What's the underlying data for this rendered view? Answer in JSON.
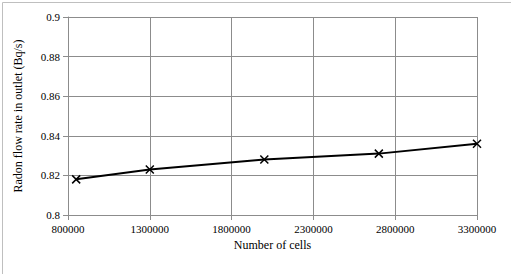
{
  "chart_data": {
    "type": "line",
    "x": [
      850000,
      1300000,
      2000000,
      2700000,
      3300000
    ],
    "values": [
      0.818,
      0.823,
      0.828,
      0.831,
      0.836
    ],
    "color": "#000000",
    "marker": "x",
    "xlabel": "Number of cells",
    "ylabel": "Radon flow rate in outlet (Bq/s)",
    "xlim": [
      800000,
      3300000
    ],
    "xticks": [
      800000,
      1300000,
      1800000,
      2300000,
      2800000,
      3300000
    ],
    "ylim": [
      0.8,
      0.9
    ],
    "yticks": [
      0.8,
      0.82,
      0.84,
      0.86,
      0.88,
      0.9
    ],
    "grid": true
  }
}
